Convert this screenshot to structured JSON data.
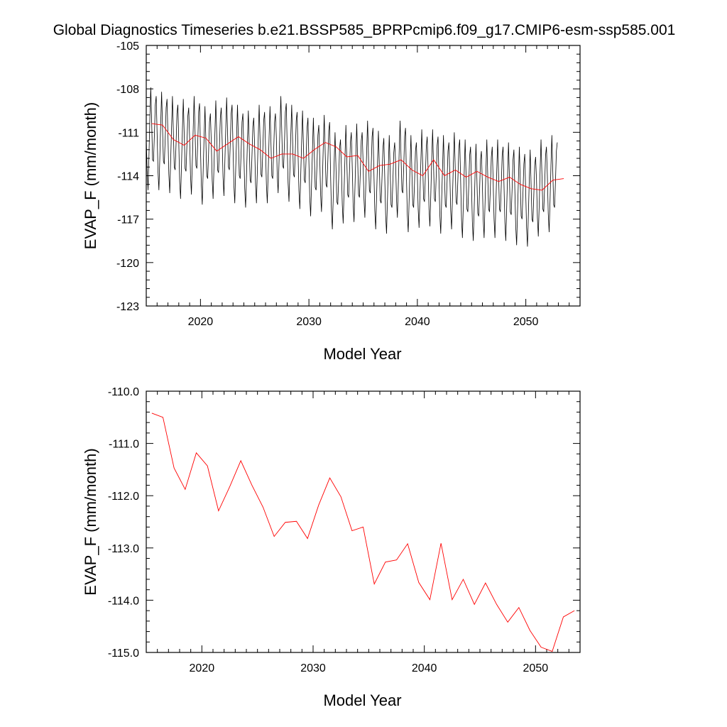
{
  "title": "Global Diagnostics Timeseries b.e21.BSSP585_BPRPcmip6.f09_g17.CMIP6-esm-ssp585.001",
  "colors": {
    "monthly": "#000000",
    "annual": "#ff0000",
    "frame": "#000000"
  },
  "chart_data": [
    {
      "type": "line",
      "title": "Global Diagnostics Timeseries b.e21.BSSP585_BPRPcmip6.f09_g17.CMIP6-esm-ssp585.001",
      "xlabel": "Model Year",
      "ylabel": "EVAP_F (mm/month)",
      "xlim": [
        2015,
        2055
      ],
      "ylim": [
        -123,
        -105
      ],
      "xticks": [
        2020,
        2030,
        2040,
        2050
      ],
      "xtick_labels": [
        "2020",
        "2030",
        "2040",
        "2050"
      ],
      "yticks": [
        -123,
        -120,
        -117,
        -114,
        -111,
        -108,
        -105
      ],
      "ytick_labels": [
        "-123",
        "-120",
        "-117",
        "-114",
        "-111",
        "-108",
        "-105"
      ],
      "grid": false,
      "series": [
        {
          "color": "#000000",
          "x_start": 2015.0,
          "x_step": 0.0833,
          "values": [
            -111.5,
            -113.6,
            -115.0,
            -112.6,
            -110.0,
            -107.9,
            -110.3,
            -112.9,
            -113.0,
            -111.2,
            -109.1,
            -108.5,
            -111.0,
            -113.7,
            -115.0,
            -112.8,
            -110.4,
            -108.2,
            -110.6,
            -113.0,
            -113.2,
            -111.4,
            -109.3,
            -108.7,
            -111.2,
            -113.9,
            -115.2,
            -113.0,
            -110.7,
            -108.5,
            -110.9,
            -113.4,
            -113.6,
            -111.8,
            -109.7,
            -109.1,
            -111.7,
            -114.4,
            -115.6,
            -113.3,
            -110.9,
            -108.7,
            -111.1,
            -113.5,
            -113.7,
            -111.9,
            -109.9,
            -109.3,
            -111.4,
            -114.0,
            -115.3,
            -113.0,
            -110.7,
            -108.5,
            -110.9,
            -113.3,
            -113.5,
            -111.7,
            -109.6,
            -109.0,
            -112.0,
            -114.7,
            -116.0,
            -113.7,
            -111.4,
            -109.2,
            -111.6,
            -114.0,
            -114.2,
            -112.4,
            -110.3,
            -109.7,
            -111.7,
            -114.3,
            -115.6,
            -113.3,
            -111.0,
            -108.8,
            -111.2,
            -113.6,
            -113.8,
            -112.0,
            -110.0,
            -109.3,
            -111.5,
            -114.1,
            -115.4,
            -113.1,
            -110.8,
            -108.6,
            -111.0,
            -113.4,
            -113.6,
            -111.8,
            -109.7,
            -109.1,
            -111.9,
            -114.6,
            -115.9,
            -113.6,
            -111.3,
            -109.1,
            -111.5,
            -114.0,
            -114.2,
            -112.4,
            -110.3,
            -109.7,
            -112.3,
            -114.9,
            -116.2,
            -114.0,
            -111.6,
            -109.5,
            -111.9,
            -114.3,
            -114.5,
            -112.7,
            -110.6,
            -110.0,
            -112.0,
            -114.6,
            -115.9,
            -113.6,
            -111.3,
            -109.1,
            -111.5,
            -113.9,
            -114.1,
            -112.3,
            -110.2,
            -109.6,
            -112.0,
            -114.6,
            -115.9,
            -113.7,
            -111.3,
            -109.2,
            -111.6,
            -114.0,
            -114.2,
            -112.4,
            -110.3,
            -109.7,
            -111.3,
            -114.0,
            -115.2,
            -113.0,
            -110.7,
            -108.5,
            -110.9,
            -113.3,
            -113.5,
            -111.7,
            -109.6,
            -109.0,
            -111.9,
            -114.5,
            -115.8,
            -113.6,
            -111.2,
            -109.1,
            -111.5,
            -113.9,
            -114.1,
            -112.3,
            -110.2,
            -109.6,
            -112.4,
            -115.0,
            -116.3,
            -114.0,
            -111.7,
            -109.5,
            -111.9,
            -114.3,
            -114.5,
            -112.7,
            -110.7,
            -110.0,
            -112.9,
            -115.5,
            -116.8,
            -114.5,
            -112.2,
            -110.0,
            -112.4,
            -114.8,
            -115.0,
            -113.2,
            -111.2,
            -110.5,
            -112.6,
            -115.3,
            -116.5,
            -114.3,
            -111.9,
            -109.8,
            -112.2,
            -114.6,
            -114.8,
            -113.0,
            -110.9,
            -110.3,
            -113.8,
            -116.4,
            -117.7,
            -115.5,
            -113.1,
            -111.0,
            -113.4,
            -115.8,
            -116.0,
            -114.2,
            -112.1,
            -111.5,
            -113.4,
            -116.0,
            -117.3,
            -115.0,
            -112.7,
            -110.5,
            -112.9,
            -115.3,
            -115.5,
            -113.7,
            -111.7,
            -111.0,
            -113.3,
            -115.9,
            -117.2,
            -114.9,
            -112.6,
            -110.4,
            -112.8,
            -115.3,
            -115.5,
            -113.7,
            -111.6,
            -111.0,
            -113.0,
            -115.6,
            -116.9,
            -114.7,
            -112.3,
            -110.2,
            -112.6,
            -115.0,
            -115.2,
            -113.4,
            -111.3,
            -110.7,
            -113.8,
            -116.4,
            -117.7,
            -115.4,
            -113.1,
            -110.9,
            -113.3,
            -115.7,
            -115.9,
            -114.1,
            -112.1,
            -111.4,
            -114.1,
            -116.7,
            -118.0,
            -115.7,
            -113.4,
            -111.2,
            -113.6,
            -116.0,
            -116.2,
            -114.4,
            -112.4,
            -111.7,
            -113.0,
            -115.6,
            -116.9,
            -114.7,
            -112.3,
            -110.2,
            -112.6,
            -115.0,
            -115.2,
            -113.4,
            -111.3,
            -110.7,
            -114.0,
            -116.7,
            -117.9,
            -115.7,
            -113.3,
            -111.2,
            -113.6,
            -116.0,
            -116.2,
            -114.4,
            -112.3,
            -111.7,
            -113.7,
            -116.3,
            -117.6,
            -115.3,
            -113.0,
            -110.8,
            -113.2,
            -115.6,
            -115.8,
            -114.0,
            -112.0,
            -111.3,
            -113.6,
            -116.3,
            -117.5,
            -115.3,
            -112.9,
            -110.8,
            -113.2,
            -115.6,
            -115.8,
            -114.0,
            -111.9,
            -111.3,
            -114.1,
            -116.7,
            -118.0,
            -115.7,
            -113.4,
            -111.2,
            -113.6,
            -116.0,
            -116.2,
            -114.4,
            -112.3,
            -111.7,
            -113.8,
            -116.4,
            -117.7,
            -115.5,
            -113.1,
            -111.0,
            -113.4,
            -115.8,
            -116.0,
            -114.2,
            -112.1,
            -111.5,
            -114.3,
            -117.0,
            -118.3,
            -116.0,
            -113.7,
            -111.5,
            -113.9,
            -116.3,
            -116.5,
            -114.7,
            -112.6,
            -112.0,
            -114.6,
            -117.2,
            -118.5,
            -116.3,
            -113.9,
            -111.8,
            -114.2,
            -116.6,
            -116.8,
            -115.0,
            -112.9,
            -112.3,
            -114.4,
            -117.0,
            -118.3,
            -116.0,
            -113.7,
            -111.5,
            -113.9,
            -116.3,
            -116.5,
            -114.7,
            -112.7,
            -112.0,
            -114.3,
            -117.0,
            -118.3,
            -116.0,
            -113.7,
            -111.5,
            -113.9,
            -116.3,
            -116.5,
            -114.7,
            -112.6,
            -112.0,
            -114.6,
            -117.2,
            -118.5,
            -116.2,
            -113.9,
            -111.7,
            -114.1,
            -116.5,
            -116.7,
            -114.9,
            -112.9,
            -112.2,
            -114.9,
            -117.5,
            -118.8,
            -116.5,
            -114.2,
            -112.0,
            -114.4,
            -116.8,
            -117.0,
            -115.2,
            -113.2,
            -112.5,
            -115.0,
            -117.6,
            -118.9,
            -116.7,
            -114.3,
            -112.2,
            -114.6,
            -117.0,
            -117.2,
            -115.4,
            -113.3,
            -112.7,
            -114.3,
            -116.9,
            -118.2,
            -116.0,
            -113.6,
            -111.5,
            -113.9,
            -116.3,
            -116.5,
            -114.7,
            -112.6,
            -112.0,
            -114.0,
            -116.6,
            -117.9,
            -115.7,
            -113.3,
            -111.2,
            -113.6,
            -116.0,
            -116.2,
            -114.4,
            -112.3,
            -111.7
          ]
        },
        {
          "color": "#ff0000",
          "x": [
            2015.5,
            2016.5,
            2017.5,
            2018.5,
            2019.5,
            2020.5,
            2021.5,
            2022.5,
            2023.5,
            2024.5,
            2025.5,
            2026.5,
            2027.5,
            2028.5,
            2029.5,
            2030.5,
            2031.5,
            2032.5,
            2033.5,
            2034.5,
            2035.5,
            2036.5,
            2037.5,
            2038.5,
            2039.5,
            2040.5,
            2041.5,
            2042.5,
            2043.5,
            2044.5,
            2045.5,
            2046.5,
            2047.5,
            2048.5,
            2049.5,
            2050.5,
            2051.5,
            2052.5,
            2053.5
          ],
          "values": [
            -110.4,
            -110.5,
            -111.5,
            -111.9,
            -111.2,
            -111.4,
            -112.3,
            -111.8,
            -111.3,
            -111.8,
            -112.2,
            -112.8,
            -112.5,
            -112.5,
            -112.8,
            -112.2,
            -111.7,
            -112.0,
            -112.7,
            -112.6,
            -113.7,
            -113.3,
            -113.2,
            -112.9,
            -113.6,
            -114.0,
            -112.9,
            -114.0,
            -113.6,
            -114.1,
            -113.7,
            -114.1,
            -114.4,
            -114.1,
            -114.6,
            -114.9,
            -115.0,
            -114.3,
            -114.2
          ]
        }
      ]
    },
    {
      "type": "line",
      "xlabel": "Model Year",
      "ylabel": "EVAP_F (mm/month)",
      "xlim": [
        2015,
        2054
      ],
      "ylim": [
        -115.0,
        -110.0
      ],
      "xticks": [
        2020,
        2030,
        2040,
        2050
      ],
      "xtick_labels": [
        "2020",
        "2030",
        "2040",
        "2050"
      ],
      "yticks": [
        -115.0,
        -114.0,
        -113.0,
        -112.0,
        -111.0,
        -110.0
      ],
      "ytick_labels": [
        "-115.0",
        "-114.0",
        "-113.0",
        "-112.0",
        "-111.0",
        "-110.0"
      ],
      "grid": false,
      "series": [
        {
          "color": "#ff0000",
          "x": [
            2015.5,
            2016.5,
            2017.5,
            2018.5,
            2019.5,
            2020.5,
            2021.5,
            2022.5,
            2023.5,
            2024.5,
            2025.5,
            2026.5,
            2027.5,
            2028.5,
            2029.5,
            2030.5,
            2031.5,
            2032.5,
            2033.5,
            2034.5,
            2035.5,
            2036.5,
            2037.5,
            2038.5,
            2039.5,
            2040.5,
            2041.5,
            2042.5,
            2043.5,
            2044.5,
            2045.5,
            2046.5,
            2047.5,
            2048.5,
            2049.5,
            2050.5,
            2051.5,
            2052.5,
            2053.5
          ],
          "values": [
            -110.42,
            -110.5,
            -111.47,
            -111.88,
            -111.18,
            -111.43,
            -112.29,
            -111.83,
            -111.33,
            -111.8,
            -112.22,
            -112.78,
            -112.51,
            -112.49,
            -112.82,
            -112.18,
            -111.66,
            -112.02,
            -112.67,
            -112.6,
            -113.69,
            -113.27,
            -113.23,
            -112.92,
            -113.66,
            -113.99,
            -112.91,
            -113.99,
            -113.6,
            -114.08,
            -113.67,
            -114.08,
            -114.42,
            -114.14,
            -114.58,
            -114.9,
            -114.98,
            -114.32,
            -114.2
          ]
        }
      ]
    }
  ]
}
